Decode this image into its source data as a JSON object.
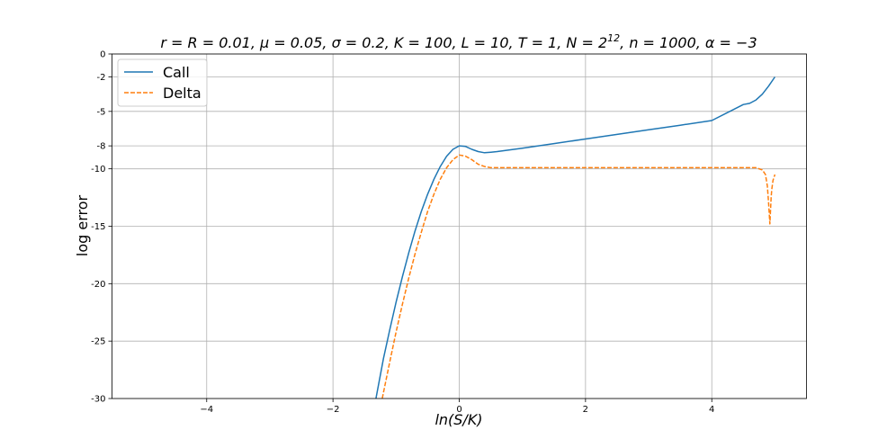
{
  "chart_data": {
    "type": "line",
    "title": "r = R = 0.01, μ = 0.05, σ = 0.2, K = 100, L = 10, T = 1, N = 2¹², n = 1000, α = −3",
    "title_parts": {
      "main": "r = R = 0.01, μ = 0.05, σ = 0.2, K = 100, L = 10, T = 1, N = 2",
      "exponent": "12",
      "tail": ", n = 1000, α = −3"
    },
    "xlabel": "ln(S/K)",
    "ylabel": "log error",
    "xlim": [
      -5.5,
      5.5
    ],
    "ylim": [
      -30,
      0
    ],
    "x_ticks": [
      {
        "value": -4,
        "label": "−4"
      },
      {
        "value": -2,
        "label": "−2"
      },
      {
        "value": 0,
        "label": "0"
      },
      {
        "value": 2,
        "label": "2"
      },
      {
        "value": 4,
        "label": "4"
      }
    ],
    "y_ticks": [
      {
        "value": 0,
        "label": "0"
      },
      {
        "value": -2,
        "label": "-2"
      },
      {
        "value": -5,
        "label": "-5"
      },
      {
        "value": -8,
        "label": "-8"
      },
      {
        "value": -10,
        "label": "-10"
      },
      {
        "value": -15,
        "label": "-15"
      },
      {
        "value": -20,
        "label": "-20"
      },
      {
        "value": -25,
        "label": "-25"
      },
      {
        "value": -30,
        "label": "-30"
      }
    ],
    "grid": true,
    "legend": {
      "position": "upper-left"
    },
    "series": [
      {
        "name": "Call",
        "color": "#1f77b4",
        "style": "solid",
        "x": [
          -1.32,
          -1.2,
          -1.1,
          -1.0,
          -0.9,
          -0.8,
          -0.7,
          -0.6,
          -0.5,
          -0.4,
          -0.3,
          -0.2,
          -0.1,
          0.0,
          0.1,
          0.2,
          0.3,
          0.4,
          0.5,
          0.6,
          0.8,
          1.0,
          1.5,
          2.0,
          2.5,
          3.0,
          3.5,
          4.0,
          4.5,
          4.6,
          4.7,
          4.8,
          4.9,
          5.0
        ],
        "y": [
          -30.0,
          -26.5,
          -24.0,
          -21.6,
          -19.4,
          -17.3,
          -15.4,
          -13.7,
          -12.2,
          -10.9,
          -9.8,
          -8.9,
          -8.3,
          -8.0,
          -8.05,
          -8.3,
          -8.5,
          -8.6,
          -8.55,
          -8.5,
          -8.35,
          -8.2,
          -7.8,
          -7.4,
          -7.0,
          -6.6,
          -6.2,
          -5.8,
          -4.4,
          -4.3,
          -4.0,
          -3.5,
          -2.8,
          -2.0
        ]
      },
      {
        "name": "Delta",
        "color": "#ff7f0e",
        "style": "dashed",
        "x": [
          -1.22,
          -1.1,
          -1.0,
          -0.9,
          -0.8,
          -0.7,
          -0.6,
          -0.5,
          -0.4,
          -0.3,
          -0.2,
          -0.1,
          0.0,
          0.1,
          0.2,
          0.3,
          0.4,
          0.5,
          1.0,
          2.0,
          3.0,
          4.0,
          4.5,
          4.7,
          4.8,
          4.85,
          4.88,
          4.9,
          4.92,
          4.94,
          4.95,
          4.97,
          5.0
        ],
        "y": [
          -30.0,
          -26.8,
          -24.2,
          -21.8,
          -19.5,
          -17.4,
          -15.5,
          -13.7,
          -12.2,
          -10.9,
          -9.9,
          -9.2,
          -8.8,
          -8.9,
          -9.2,
          -9.6,
          -9.8,
          -9.9,
          -9.9,
          -9.9,
          -9.9,
          -9.9,
          -9.9,
          -9.9,
          -10.1,
          -10.5,
          -11.5,
          -13.0,
          -14.8,
          -12.5,
          -11.8,
          -11.0,
          -10.5
        ]
      }
    ]
  }
}
